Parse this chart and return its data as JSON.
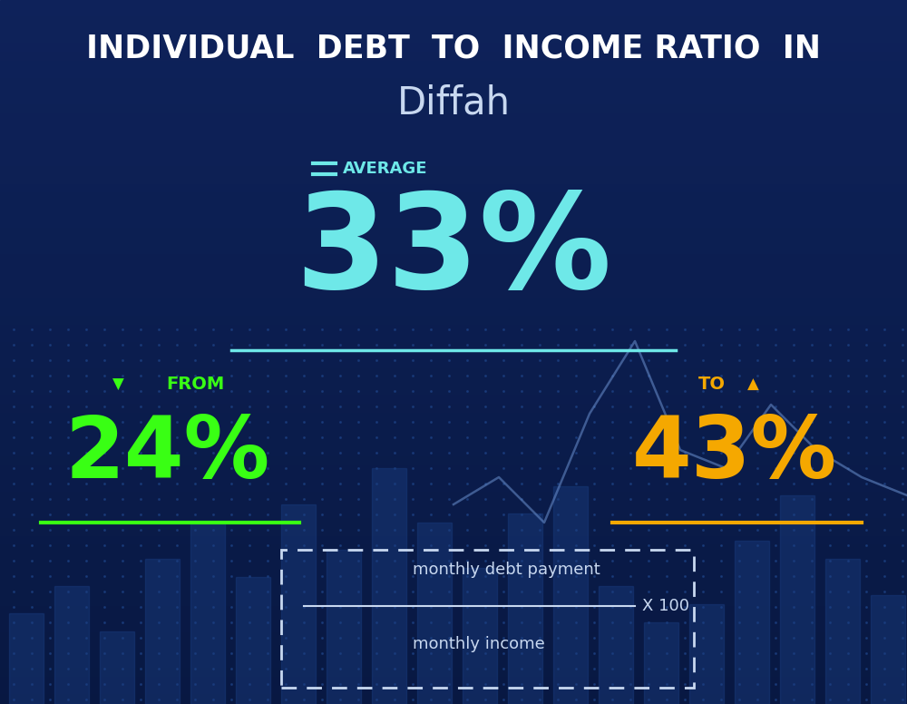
{
  "title_line1": "INDIVIDUAL  DEBT  TO  INCOME RATIO  IN",
  "title_line2": "Diffah",
  "avg_label": "AVERAGE",
  "avg_value": "33%",
  "from_label": "FROM",
  "from_value": "24%",
  "to_label": "TO",
  "to_value": "43%",
  "formula_numerator": "monthly debt payment",
  "formula_denominator": "monthly income",
  "formula_multiplier": "X 100",
  "avg_color": "#6ee8e8",
  "from_color": "#39ff14",
  "to_color": "#f5a800",
  "title_color": "#ffffff",
  "subtitle_color": "#c8d8f0",
  "formula_color": "#c8d8f0",
  "underline_avg_color": "#6ee8e8",
  "underline_from_color": "#39ff14",
  "underline_to_color": "#f5a800"
}
